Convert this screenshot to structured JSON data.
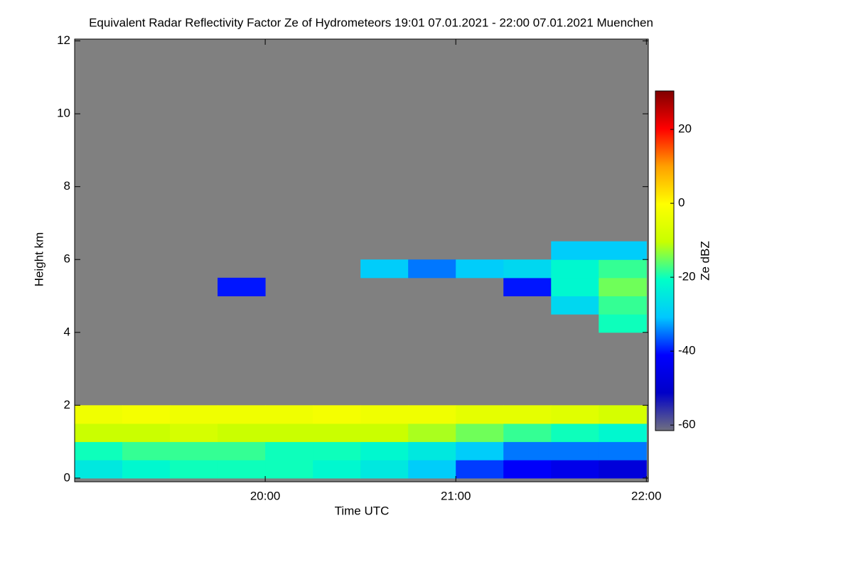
{
  "chart_data": {
    "type": "heatmap",
    "title": "Equivalent Radar Reflectivity Factor Ze of Hydrometeors   19:01 07.01.2021 - 22:00 07.01.2021 Muenchen",
    "x_label": "Time UTC",
    "y_label": "Height km",
    "colorbar_label": "Ze dBZ",
    "xlim": [
      19.0,
      22.01
    ],
    "xticks": [
      {
        "value": 20,
        "label": "20:00"
      },
      {
        "value": 21,
        "label": "21:00"
      },
      {
        "value": 22,
        "label": "22:00"
      }
    ],
    "ylim": [
      -0.1,
      12.05
    ],
    "yticks": [
      0,
      2,
      4,
      6,
      8,
      10,
      12
    ],
    "zlim": [
      -61.5,
      30.4
    ],
    "zticks": [
      -60,
      -40,
      -20,
      0,
      20
    ],
    "background_color": "#808080",
    "colormap": [
      "#707080",
      "#0000c8",
      "#0000ff",
      "#00c8ff",
      "#00ffc8",
      "#c8ff00",
      "#ffff00",
      "#ffa000",
      "#ff0000",
      "#800000"
    ],
    "x": [
      19.125,
      19.375,
      19.625,
      19.875,
      20.125,
      20.375,
      20.625,
      20.875,
      21.125,
      21.375,
      21.625,
      21.875
    ],
    "y": [
      0.25,
      0.75,
      1.25,
      1.75,
      2.25,
      2.75,
      3.25,
      3.75,
      4.25,
      4.75,
      5.25,
      5.75,
      6.25
    ],
    "z": [
      [
        -25,
        -22,
        -20,
        -20,
        -20,
        -22,
        -25,
        -30,
        -38,
        -42,
        -45,
        -48
      ],
      [
        -20,
        -18,
        -18,
        -18,
        -20,
        -20,
        -22,
        -25,
        -30,
        -35,
        -35,
        -35
      ],
      [
        -10,
        -10,
        -8,
        -10,
        -10,
        -10,
        -10,
        -12,
        -15,
        -18,
        -20,
        -22
      ],
      [
        -3,
        -2,
        -3,
        -3,
        -3,
        -2,
        -3,
        -3,
        -5,
        -5,
        -6,
        -8
      ],
      [
        null,
        null,
        null,
        null,
        null,
        null,
        null,
        null,
        null,
        null,
        null,
        null
      ],
      [
        null,
        null,
        null,
        null,
        null,
        null,
        null,
        null,
        null,
        null,
        null,
        null
      ],
      [
        null,
        null,
        null,
        null,
        null,
        null,
        null,
        null,
        null,
        null,
        null,
        null
      ],
      [
        null,
        null,
        null,
        null,
        null,
        null,
        null,
        null,
        null,
        null,
        null,
        null
      ],
      [
        null,
        null,
        null,
        null,
        null,
        null,
        null,
        null,
        null,
        null,
        null,
        -20
      ],
      [
        null,
        null,
        null,
        null,
        null,
        null,
        null,
        null,
        null,
        null,
        -28,
        -18
      ],
      [
        null,
        null,
        null,
        -40,
        null,
        null,
        null,
        null,
        null,
        -40,
        -22,
        -15
      ],
      [
        null,
        null,
        null,
        null,
        null,
        null,
        -30,
        -35,
        -30,
        -28,
        -22,
        -18
      ],
      [
        null,
        null,
        null,
        null,
        null,
        null,
        null,
        null,
        null,
        null,
        -30,
        -30
      ]
    ]
  }
}
